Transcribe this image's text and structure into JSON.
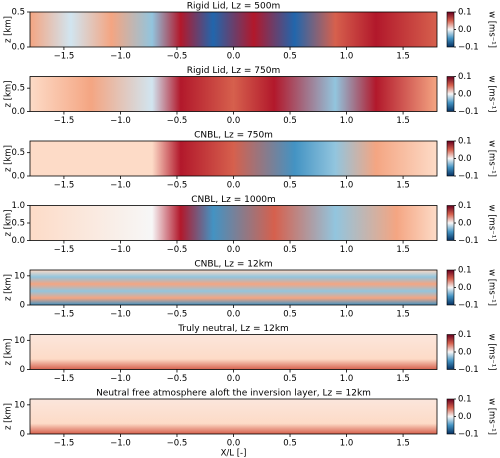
{
  "chart_data": [
    {
      "type": "heatmap",
      "title": "Rigid Lid, Lz = 500m",
      "ylabel": "z [km]",
      "xlim": [
        -1.8,
        1.8
      ],
      "xticks": [
        {
          "value": -1.5,
          "label": "−1.5"
        },
        {
          "value": -1.0,
          "label": "−1.0"
        },
        {
          "value": -0.5,
          "label": "−0.5"
        },
        {
          "value": 0.0,
          "label": "0.0"
        },
        0.5,
        {
          "value": 1.0,
          "label": "1.0"
        },
        1.5
      ],
      "ylim": [
        0,
        0.5
      ],
      "yticks": [
        {
          "value": 0,
          "label": "0.0"
        },
        0.5
      ],
      "colorbar_label": "w [ms⁻¹]",
      "clim": [
        -0.1,
        0.1
      ],
      "colorbar_ticks": [
        {
          "value": -0.1,
          "label": "−0.1"
        },
        {
          "value": 0,
          "label": "0.0"
        },
        0.1
      ]
    },
    {
      "type": "heatmap",
      "title": "Rigid Lid, Lz = 750m",
      "ylabel": "z [km]",
      "xlim": [
        -1.8,
        1.8
      ],
      "xticks": [
        {
          "value": -1.5,
          "label": "−1.5"
        },
        {
          "value": -1.0,
          "label": "−1.0"
        },
        {
          "value": -0.5,
          "label": "−0.5"
        },
        {
          "value": 0.0,
          "label": "0.0"
        },
        0.5,
        {
          "value": 1.0,
          "label": "1.0"
        },
        1.5
      ],
      "ylim": [
        0,
        0.75
      ],
      "yticks": [
        {
          "value": 0,
          "label": "0.0"
        },
        0.5
      ],
      "colorbar_label": "w [ms⁻¹]",
      "clim": [
        -0.1,
        0.1
      ],
      "colorbar_ticks": [
        {
          "value": -0.1,
          "label": "−0.1"
        },
        {
          "value": 0,
          "label": "0.0"
        },
        0.1
      ]
    },
    {
      "type": "heatmap",
      "title": "CNBL, Lz = 750m",
      "ylabel": "z [km]",
      "xlim": [
        -1.8,
        1.8
      ],
      "xticks": [
        {
          "value": -1.5,
          "label": "−1.5"
        },
        {
          "value": -1.0,
          "label": "−1.0"
        },
        {
          "value": -0.5,
          "label": "−0.5"
        },
        {
          "value": 0.0,
          "label": "0.0"
        },
        0.5,
        {
          "value": 1.0,
          "label": "1.0"
        },
        1.5
      ],
      "ylim": [
        0,
        0.75
      ],
      "yticks": [
        {
          "value": 0,
          "label": "0.0"
        },
        0.5
      ],
      "colorbar_label": "w [ms⁻¹]",
      "clim": [
        -0.1,
        0.1
      ],
      "colorbar_ticks": [
        {
          "value": -0.1,
          "label": "−0.1"
        },
        {
          "value": 0,
          "label": "0.0"
        },
        0.1
      ]
    },
    {
      "type": "heatmap",
      "title": "CNBL, Lz = 1000m",
      "ylabel": "z [km]",
      "xlim": [
        -1.8,
        1.8
      ],
      "xticks": [
        {
          "value": -1.5,
          "label": "−1.5"
        },
        {
          "value": -1.0,
          "label": "−1.0"
        },
        {
          "value": -0.5,
          "label": "−0.5"
        },
        {
          "value": 0.0,
          "label": "0.0"
        },
        0.5,
        {
          "value": 1.0,
          "label": "1.0"
        },
        1.5
      ],
      "ylim": [
        0,
        1
      ],
      "yticks": [
        {
          "value": 0,
          "label": "0.0"
        },
        0.5,
        {
          "value": 1,
          "label": "1.0"
        }
      ],
      "colorbar_label": "w [ms⁻¹]",
      "clim": [
        -0.1,
        0.1
      ],
      "colorbar_ticks": [
        {
          "value": -0.1,
          "label": "−0.1"
        },
        {
          "value": 0,
          "label": "0.0"
        },
        0.1
      ]
    },
    {
      "type": "heatmap",
      "title": "CNBL, Lz = 12km",
      "ylabel": "z [km]",
      "xlim": [
        -1.8,
        1.8
      ],
      "xticks": [
        {
          "value": -1.5,
          "label": "−1.5"
        },
        {
          "value": -1.0,
          "label": "−1.0"
        },
        {
          "value": -0.5,
          "label": "−0.5"
        },
        {
          "value": 0.0,
          "label": "0.0"
        },
        0.5,
        {
          "value": 1.0,
          "label": "1.0"
        },
        1.5
      ],
      "ylim": [
        0,
        12
      ],
      "yticks": [
        0,
        10
      ],
      "colorbar_label": "w [ms⁻¹]",
      "clim": [
        -0.1,
        0.1
      ],
      "colorbar_ticks": [
        {
          "value": -0.1,
          "label": "−0.1"
        },
        {
          "value": 0,
          "label": "0.0"
        },
        0.1
      ]
    },
    {
      "type": "heatmap",
      "title": "Truly neutral, Lz = 12km",
      "ylabel": "z [km]",
      "xlim": [
        -1.8,
        1.8
      ],
      "xticks": [
        {
          "value": -1.5,
          "label": "−1.5"
        },
        {
          "value": -1.0,
          "label": "−1.0"
        },
        {
          "value": -0.5,
          "label": "−0.5"
        },
        {
          "value": 0.0,
          "label": "0.0"
        },
        0.5,
        {
          "value": 1.0,
          "label": "1.0"
        },
        1.5
      ],
      "ylim": [
        0,
        12
      ],
      "yticks": [
        0,
        10
      ],
      "colorbar_label": "w [ms⁻¹]",
      "clim": [
        -0.1,
        0.1
      ],
      "colorbar_ticks": [
        {
          "value": -0.1,
          "label": "−0.1"
        },
        {
          "value": 0,
          "label": "0.0"
        },
        0.1
      ]
    },
    {
      "type": "heatmap",
      "title": "Neutral free atmosphere aloft the inversion layer, Lz = 12km",
      "ylabel": "z [km]",
      "xlabel": "X/L [-]",
      "xlim": [
        -1.8,
        1.8
      ],
      "xticks": [
        {
          "value": -1.5,
          "label": "−1.5"
        },
        {
          "value": -1.0,
          "label": "−1.0"
        },
        {
          "value": -0.5,
          "label": "−0.5"
        },
        {
          "value": 0.0,
          "label": "0.0"
        },
        0.5,
        {
          "value": 1.0,
          "label": "1.0"
        },
        1.5
      ],
      "ylim": [
        0,
        12
      ],
      "yticks": [
        0,
        10
      ],
      "colorbar_label": "w [ms⁻¹]",
      "clim": [
        -0.1,
        0.1
      ],
      "colorbar_ticks": [
        {
          "value": -0.1,
          "label": "−0.1"
        },
        {
          "value": 0,
          "label": "0.0"
        },
        0.1
      ]
    }
  ]
}
